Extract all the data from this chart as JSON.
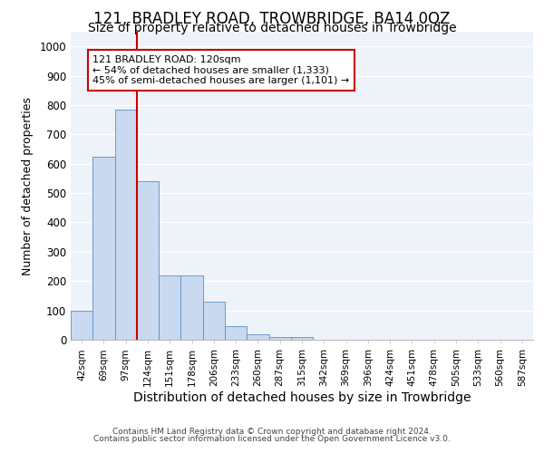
{
  "title": "121, BRADLEY ROAD, TROWBRIDGE, BA14 0QZ",
  "subtitle": "Size of property relative to detached houses in Trowbridge",
  "xlabel": "Distribution of detached houses by size in Trowbridge",
  "ylabel": "Number of detached properties",
  "categories": [
    "42sqm",
    "69sqm",
    "97sqm",
    "124sqm",
    "151sqm",
    "178sqm",
    "206sqm",
    "233sqm",
    "260sqm",
    "287sqm",
    "315sqm",
    "342sqm",
    "369sqm",
    "396sqm",
    "424sqm",
    "451sqm",
    "478sqm",
    "505sqm",
    "533sqm",
    "560sqm",
    "587sqm"
  ],
  "values": [
    100,
    625,
    785,
    540,
    220,
    220,
    130,
    45,
    18,
    10,
    10,
    0,
    0,
    0,
    0,
    0,
    0,
    0,
    0,
    0,
    0
  ],
  "bar_color": "#c9d9ef",
  "bar_edge_color": "#5b8fc9",
  "vline_x": 3,
  "vline_color": "#cc0000",
  "annotation_text": "121 BRADLEY ROAD: 120sqm\n← 54% of detached houses are smaller (1,333)\n45% of semi-detached houses are larger (1,101) →",
  "annotation_box_color": "white",
  "annotation_box_edge": "#cc0000",
  "ylim": [
    0,
    1050
  ],
  "yticks": [
    0,
    100,
    200,
    300,
    400,
    500,
    600,
    700,
    800,
    900,
    1000
  ],
  "footer_line1": "Contains HM Land Registry data © Crown copyright and database right 2024.",
  "footer_line2": "Contains public sector information licensed under the Open Government Licence v3.0.",
  "bg_color": "#eef2f9",
  "grid_color": "white",
  "title_fontsize": 12,
  "subtitle_fontsize": 10,
  "xlabel_fontsize": 10,
  "ylabel_fontsize": 9
}
